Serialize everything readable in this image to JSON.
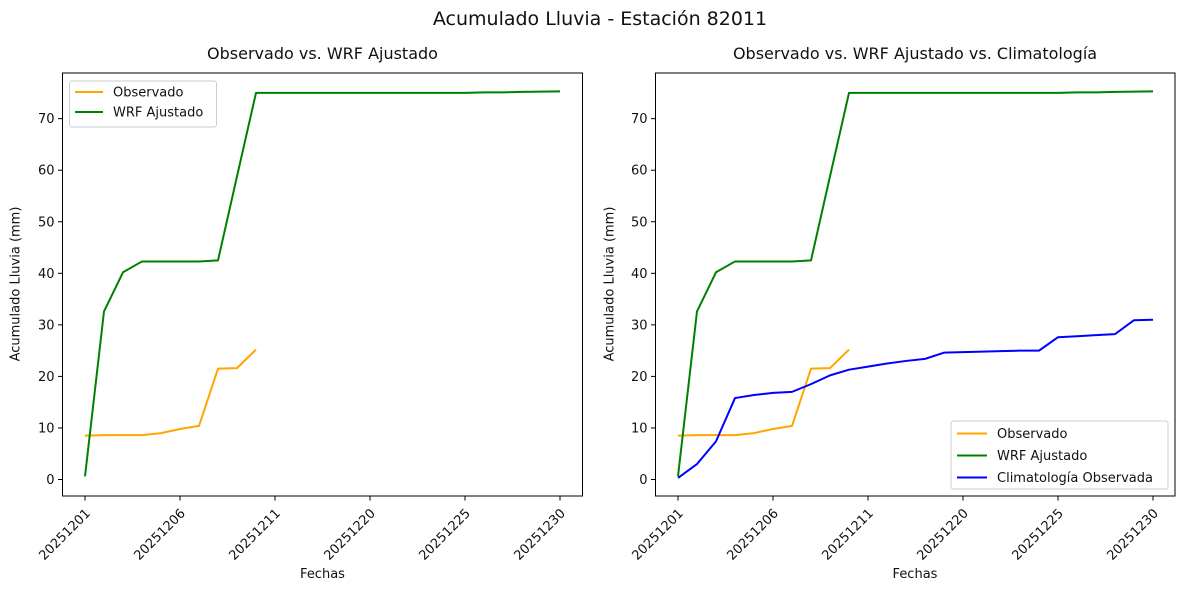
{
  "suptitle": "Acumulado Lluvia - Estación 82011",
  "chart_data": [
    {
      "type": "line",
      "title": "Observado vs. WRF Ajustado",
      "xlabel": "Fechas",
      "ylabel": "Acumulado Lluvia (mm)",
      "x_tick_labels": [
        "20251201",
        "20251206",
        "20251211",
        "20251220",
        "20251225",
        "20251230"
      ],
      "x_tick_indices": [
        0,
        5,
        10,
        15,
        20,
        25
      ],
      "y_ticks": [
        0,
        10,
        20,
        30,
        40,
        50,
        60,
        70
      ],
      "ylim": [
        -3.2,
        78.9
      ],
      "grid": false,
      "legend_position": "upper-left",
      "series": [
        {
          "name": "Observado",
          "color": "#FFA500",
          "values": [
            8.5,
            8.6,
            8.6,
            8.6,
            9.0,
            9.8,
            10.4,
            21.5,
            21.6,
            25.2
          ]
        },
        {
          "name": "WRF Ajustado",
          "color": "#008000",
          "values": [
            0.6,
            32.6,
            40.2,
            42.3,
            42.3,
            42.3,
            42.3,
            42.5,
            58.8,
            75.0,
            75.0,
            75.0,
            75.0,
            75.0,
            75.0,
            75.0,
            75.0,
            75.0,
            75.0,
            75.0,
            75.0,
            75.1,
            75.1,
            75.2,
            75.25,
            75.3
          ]
        }
      ]
    },
    {
      "type": "line",
      "title": "Observado vs. WRF Ajustado vs. Climatología",
      "xlabel": "Fechas",
      "ylabel": "Acumulado Lluvia (mm)",
      "x_tick_labels": [
        "20251201",
        "20251206",
        "20251211",
        "20251220",
        "20251225",
        "20251230"
      ],
      "x_tick_indices": [
        0,
        5,
        10,
        15,
        20,
        25
      ],
      "y_ticks": [
        0,
        10,
        20,
        30,
        40,
        50,
        60,
        70
      ],
      "ylim": [
        -3.2,
        78.9
      ],
      "grid": false,
      "legend_position": "lower-right",
      "series": [
        {
          "name": "Observado",
          "color": "#FFA500",
          "values": [
            8.5,
            8.6,
            8.6,
            8.6,
            9.0,
            9.8,
            10.4,
            21.5,
            21.6,
            25.2
          ]
        },
        {
          "name": "WRF Ajustado",
          "color": "#008000",
          "values": [
            0.6,
            32.6,
            40.2,
            42.3,
            42.3,
            42.3,
            42.3,
            42.5,
            58.8,
            75.0,
            75.0,
            75.0,
            75.0,
            75.0,
            75.0,
            75.0,
            75.0,
            75.0,
            75.0,
            75.0,
            75.0,
            75.1,
            75.1,
            75.2,
            75.25,
            75.3
          ]
        },
        {
          "name": "Climatología Observada",
          "color": "#0000FF",
          "values": [
            0.3,
            3.0,
            7.4,
            15.8,
            16.4,
            16.8,
            17.0,
            18.5,
            20.2,
            21.3,
            21.9,
            22.5,
            23.0,
            23.4,
            24.6,
            24.7,
            24.8,
            24.9,
            25.0,
            25.0,
            27.6,
            27.8,
            28.0,
            28.2,
            30.9,
            31.0
          ]
        }
      ]
    }
  ]
}
